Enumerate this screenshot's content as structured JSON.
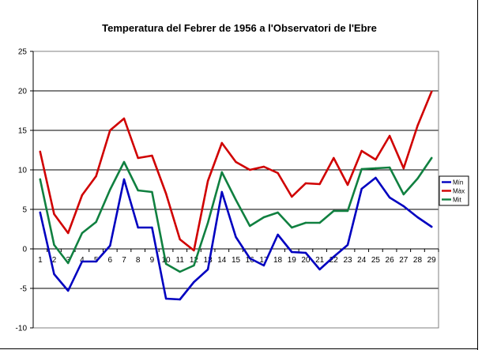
{
  "chart_data": {
    "type": "line",
    "title": "Temperatura del Febrer de 1956 a l'Observatori de l'Ebre",
    "xlabel": "",
    "ylabel": "",
    "categories": [
      "1",
      "2",
      "3",
      "4",
      "5",
      "6",
      "7",
      "8",
      "9",
      "10",
      "11",
      "12",
      "13",
      "14",
      "15",
      "16",
      "17",
      "18",
      "19",
      "20",
      "21",
      "22",
      "23",
      "24",
      "25",
      "26",
      "27",
      "28",
      "29"
    ],
    "ylim": [
      -10,
      25
    ],
    "yticks": [
      "-10",
      "-5",
      "0",
      "5",
      "10",
      "15",
      "20",
      "25"
    ],
    "grid": "horizontal",
    "legend_position": "right",
    "series": [
      {
        "name": "Mín",
        "color": "#0000c0",
        "values": [
          4.6,
          -3.2,
          -5.3,
          -1.6,
          -1.6,
          0.4,
          8.8,
          2.7,
          2.7,
          -6.3,
          -6.4,
          -4.2,
          -2.6,
          7.2,
          1.5,
          -1.2,
          -2.1,
          1.8,
          -0.4,
          -0.5,
          -2.6,
          -1.0,
          0.5,
          7.6,
          9.0,
          6.5,
          5.4,
          4.0,
          2.8
        ]
      },
      {
        "name": "Màx",
        "color": "#d00000",
        "values": [
          12.3,
          4.4,
          2.0,
          6.8,
          9.2,
          15.0,
          16.5,
          11.5,
          11.8,
          7.0,
          1.2,
          -0.2,
          8.6,
          13.4,
          11.0,
          10.0,
          10.4,
          9.6,
          6.6,
          8.3,
          8.2,
          11.5,
          8.1,
          12.4,
          11.3,
          14.3,
          10.2,
          15.6,
          19.9
        ]
      },
      {
        "name": "Mit",
        "color": "#108040",
        "values": [
          8.8,
          0.5,
          -1.8,
          2.0,
          3.4,
          7.5,
          11.0,
          7.4,
          7.2,
          -1.9,
          -2.9,
          -2.1,
          3.3,
          9.7,
          6.2,
          2.9,
          4.0,
          4.6,
          2.7,
          3.3,
          3.3,
          4.8,
          4.8,
          10.1,
          10.2,
          10.3,
          6.9,
          8.9,
          11.5
        ]
      }
    ]
  }
}
